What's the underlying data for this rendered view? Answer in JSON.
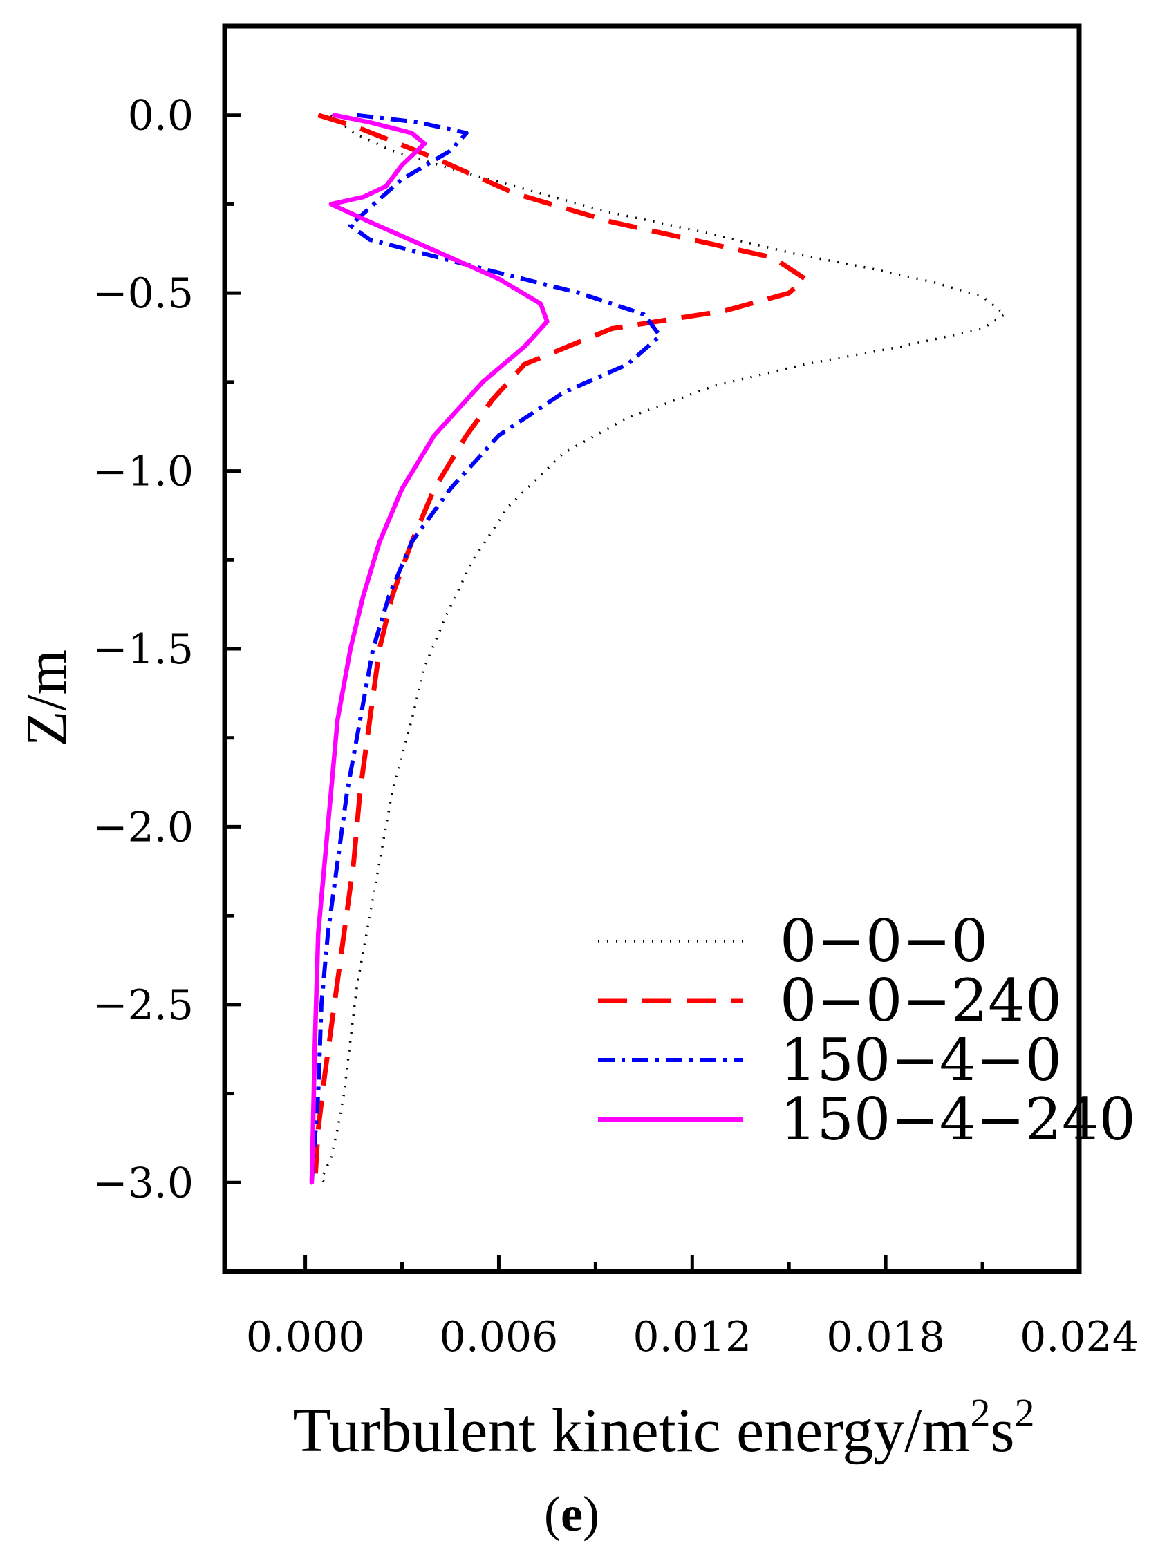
{
  "chart_data": {
    "type": "line",
    "xlabel_main": "Turbulent kinetic energy/m",
    "xlabel_sup1": "2",
    "xlabel_mid": "s",
    "xlabel_sup2": "2",
    "ylabel": "Z/m",
    "panel_label_open": "(",
    "panel_label_letter": "e",
    "panel_label_close": ")",
    "xlim": [
      -0.0025,
      0.024
    ],
    "ylim": [
      -3.25,
      0.25
    ],
    "x_ticks": [
      0.0,
      0.006,
      0.012,
      0.018,
      0.024
    ],
    "x_tick_labels": [
      "0.000",
      "0.006",
      "0.012",
      "0.018",
      "0.024"
    ],
    "x_minor_ticks": [
      0.003,
      0.009,
      0.015,
      0.021
    ],
    "y_ticks": [
      0.0,
      -0.5,
      -1.0,
      -1.5,
      -2.0,
      -2.5,
      -3.0
    ],
    "y_tick_labels": [
      "0.0",
      "−0.5",
      "−1.0",
      "−1.5",
      "−2.0",
      "−2.5",
      "−3.0"
    ],
    "y_minor_ticks": [
      -0.25,
      -0.75,
      -1.25,
      -1.75,
      -2.25,
      -2.75
    ],
    "legend_position": "bottom-right",
    "series": [
      {
        "name": "0−0−0",
        "color": "#000000",
        "dash": "2,11",
        "width": 3.5,
        "x": [
          0.0008,
          0.0015,
          0.0027,
          0.0045,
          0.0065,
          0.0093,
          0.0124,
          0.0152,
          0.0175,
          0.0195,
          0.021,
          0.0217,
          0.021,
          0.0185,
          0.0155,
          0.0127,
          0.01,
          0.008,
          0.0063,
          0.0052,
          0.0044,
          0.0037,
          0.0033,
          0.0027,
          0.0023,
          0.0019,
          0.0016,
          0.0014,
          0.0012,
          0.001,
          0.0008,
          0.0006,
          0.0005,
          0.0006
        ],
        "y": [
          0.0,
          -0.05,
          -0.1,
          -0.15,
          -0.2,
          -0.27,
          -0.33,
          -0.39,
          -0.43,
          -0.47,
          -0.51,
          -0.56,
          -0.6,
          -0.65,
          -0.7,
          -0.76,
          -0.85,
          -0.95,
          -1.1,
          -1.25,
          -1.4,
          -1.55,
          -1.7,
          -1.9,
          -2.1,
          -2.3,
          -2.45,
          -2.6,
          -2.75,
          -2.85,
          -2.93,
          -2.97,
          -2.99,
          -3.0
        ]
      },
      {
        "name": "0−0−240",
        "color": "#ff0000",
        "dash": "42,22",
        "width": 7,
        "x": [
          0.0004,
          0.0015,
          0.004,
          0.0065,
          0.0095,
          0.0125,
          0.0145,
          0.0155,
          0.015,
          0.013,
          0.0095,
          0.0068,
          0.0058,
          0.005,
          0.004,
          0.0033,
          0.0027,
          0.0023,
          0.002,
          0.0017,
          0.0015,
          0.0012,
          0.0009,
          0.0006,
          0.0004,
          0.0003
        ],
        "y": [
          0.0,
          -0.03,
          -0.12,
          -0.22,
          -0.3,
          -0.36,
          -0.4,
          -0.46,
          -0.5,
          -0.55,
          -0.6,
          -0.7,
          -0.8,
          -0.9,
          -1.05,
          -1.2,
          -1.35,
          -1.5,
          -1.7,
          -1.9,
          -2.1,
          -2.3,
          -2.5,
          -2.7,
          -2.85,
          -3.0
        ]
      },
      {
        "name": "150−4−0",
        "color": "#0000ff",
        "dash": "24,10,5,10",
        "width": 6,
        "x": [
          0.0016,
          0.0035,
          0.005,
          0.0045,
          0.003,
          0.002,
          0.0014,
          0.002,
          0.005,
          0.0085,
          0.0105,
          0.011,
          0.01,
          0.008,
          0.006,
          0.0045,
          0.0033,
          0.0026,
          0.0021,
          0.0017,
          0.0013,
          0.001,
          0.0007,
          0.0005,
          0.0004,
          0.0002
        ],
        "y": [
          0.0,
          -0.02,
          -0.05,
          -0.1,
          -0.18,
          -0.26,
          -0.31,
          -0.35,
          -0.42,
          -0.5,
          -0.56,
          -0.62,
          -0.7,
          -0.78,
          -0.9,
          -1.05,
          -1.2,
          -1.35,
          -1.5,
          -1.7,
          -1.9,
          -2.1,
          -2.3,
          -2.5,
          -2.75,
          -3.0
        ]
      },
      {
        "name": "150−4−240",
        "color": "#ff00ff",
        "dash": "",
        "width": 6.5,
        "x": [
          0.0009,
          0.002,
          0.0033,
          0.0037,
          0.003,
          0.0025,
          0.0018,
          0.0008,
          0.002,
          0.004,
          0.006,
          0.0073,
          0.0075,
          0.0068,
          0.0055,
          0.004,
          0.003,
          0.0023,
          0.0018,
          0.0014,
          0.001,
          0.0008,
          0.0006,
          0.0004,
          0.0003,
          0.0002
        ],
        "y": [
          0.0,
          -0.02,
          -0.05,
          -0.08,
          -0.14,
          -0.2,
          -0.23,
          -0.25,
          -0.3,
          -0.38,
          -0.46,
          -0.53,
          -0.58,
          -0.65,
          -0.75,
          -0.9,
          -1.05,
          -1.2,
          -1.35,
          -1.5,
          -1.7,
          -1.9,
          -2.1,
          -2.3,
          -2.6,
          -3.0
        ]
      }
    ]
  }
}
